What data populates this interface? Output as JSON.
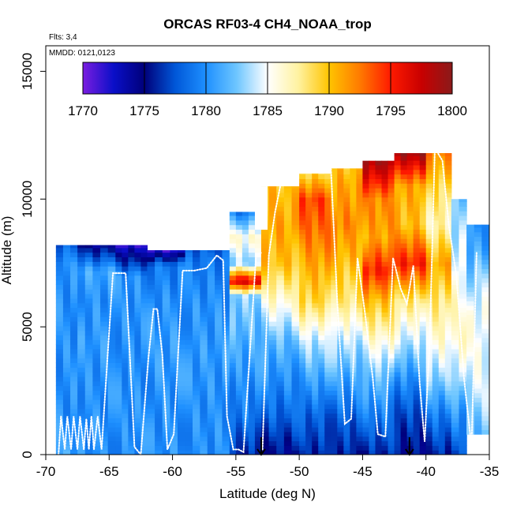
{
  "chart_data": {
    "type": "heatmap",
    "title": "ORCAS RF03-4 CH4_NOAA_trop",
    "flights_label": "Flts: 3,4",
    "mmdd_label": "MMDD: 0121,0123",
    "xlabel": "Latitude (deg N)",
    "ylabel": "Altitude (m)",
    "xlim": [
      -70,
      -35
    ],
    "ylim": [
      0,
      16000
    ],
    "x_ticks": [
      -70,
      -65,
      -60,
      -55,
      -50,
      -45,
      -40,
      -35
    ],
    "x_tick_labels": [
      "-70",
      "-65",
      "-60",
      "-55",
      "-50",
      "-45",
      "-40",
      "-35"
    ],
    "y_ticks": [
      0,
      5000,
      10000,
      15000
    ],
    "y_tick_labels": [
      "0",
      "5000",
      "10000",
      "15000"
    ],
    "colorbar": {
      "min": 1770,
      "max": 1800,
      "ticks": [
        1770,
        1775,
        1780,
        1785,
        1790,
        1795,
        1800
      ],
      "tick_labels": [
        "1770",
        "1775",
        "1780",
        "1785",
        "1790",
        "1795",
        "1800"
      ],
      "colors": [
        "#7a1de0",
        "#0a0fc8",
        "#00007a",
        "#0057d8",
        "#1e90ff",
        "#6ec6ff",
        "#ffffff",
        "#fff2a0",
        "#ffc400",
        "#ff7a00",
        "#ff1a00",
        "#c80000",
        "#8b1a1a"
      ]
    },
    "columns": [
      {
        "x0": -69.2,
        "x1": -67.5,
        "bottom": 0,
        "top": 8200,
        "profile": [
          [
            0,
            1781
          ],
          [
            1500,
            1780
          ],
          [
            3000,
            1780
          ],
          [
            4500,
            1780
          ],
          [
            6000,
            1780
          ],
          [
            7500,
            1780
          ],
          [
            8200,
            1778
          ]
        ]
      },
      {
        "x0": -67.5,
        "x1": -64.5,
        "bottom": 0,
        "top": 8200,
        "profile": [
          [
            0,
            1780
          ],
          [
            1500,
            1780
          ],
          [
            3000,
            1780
          ],
          [
            4500,
            1780.5
          ],
          [
            6000,
            1780
          ],
          [
            7200,
            1781
          ],
          [
            8200,
            1774.5
          ]
        ]
      },
      {
        "x0": -64.5,
        "x1": -62,
        "bottom": 0,
        "top": 8200,
        "profile": [
          [
            0,
            1780
          ],
          [
            2000,
            1780
          ],
          [
            4000,
            1780
          ],
          [
            5500,
            1780
          ],
          [
            7000,
            1780
          ],
          [
            8200,
            1772
          ]
        ]
      },
      {
        "x0": -62,
        "x1": -59,
        "bottom": 0,
        "top": 8000,
        "profile": [
          [
            0,
            1780
          ],
          [
            2000,
            1780
          ],
          [
            4000,
            1780.5
          ],
          [
            6000,
            1780
          ],
          [
            7400,
            1779
          ],
          [
            8000,
            1772
          ]
        ]
      },
      {
        "x0": -59,
        "x1": -55.5,
        "bottom": 0,
        "top": 8000,
        "profile": [
          [
            0,
            1780
          ],
          [
            2000,
            1780
          ],
          [
            4000,
            1780.5
          ],
          [
            6000,
            1780
          ],
          [
            7500,
            1779
          ],
          [
            8000,
            1778
          ]
        ]
      },
      {
        "x0": -55.5,
        "x1": -53,
        "bottom": 0,
        "top": 9500,
        "profile": [
          [
            0,
            1776
          ],
          [
            1500,
            1779
          ],
          [
            3000,
            1780
          ],
          [
            5000,
            1782
          ],
          [
            6200,
            1783
          ],
          [
            6800,
            1797
          ],
          [
            7500,
            1783
          ],
          [
            8500,
            1786
          ],
          [
            9500,
            1779
          ]
        ]
      },
      {
        "x0": -53,
        "x1": -50,
        "bottom": 0,
        "top": 10500,
        "profile": [
          [
            0,
            1775
          ],
          [
            1500,
            1778
          ],
          [
            3000,
            1780
          ],
          [
            4500,
            1782
          ],
          [
            6000,
            1786
          ],
          [
            7500,
            1790
          ],
          [
            9000,
            1791
          ],
          [
            10500,
            1790
          ]
        ]
      },
      {
        "x0": -50,
        "x1": -47.5,
        "bottom": 0,
        "top": 11000,
        "profile": [
          [
            0,
            1776
          ],
          [
            1500,
            1778
          ],
          [
            3000,
            1781
          ],
          [
            4500,
            1784
          ],
          [
            6000,
            1789
          ],
          [
            7500,
            1791
          ],
          [
            9000,
            1793
          ],
          [
            10000,
            1794
          ],
          [
            11000,
            1789
          ]
        ]
      },
      {
        "x0": -47.5,
        "x1": -45,
        "bottom": 0,
        "top": 11200,
        "profile": [
          [
            0,
            1776
          ],
          [
            1500,
            1778
          ],
          [
            3000,
            1781
          ],
          [
            4500,
            1784
          ],
          [
            6000,
            1788
          ],
          [
            7500,
            1790
          ],
          [
            9000,
            1792
          ],
          [
            10500,
            1791
          ],
          [
            11200,
            1790
          ]
        ]
      },
      {
        "x0": -45,
        "x1": -42.5,
        "bottom": 0,
        "top": 11500,
        "profile": [
          [
            0,
            1776
          ],
          [
            1500,
            1779
          ],
          [
            3000,
            1782
          ],
          [
            4500,
            1786
          ],
          [
            6000,
            1790
          ],
          [
            7200,
            1795
          ],
          [
            8500,
            1791
          ],
          [
            10000,
            1792
          ],
          [
            11500,
            1799
          ]
        ]
      },
      {
        "x0": -42.5,
        "x1": -40,
        "bottom": 0,
        "top": 11800,
        "profile": [
          [
            0,
            1775
          ],
          [
            1500,
            1777
          ],
          [
            3000,
            1780
          ],
          [
            4500,
            1784
          ],
          [
            6000,
            1788
          ],
          [
            7500,
            1795
          ],
          [
            9000,
            1790
          ],
          [
            10500,
            1791
          ],
          [
            11800,
            1799
          ]
        ]
      },
      {
        "x0": -40,
        "x1": -38,
        "bottom": 0,
        "top": 11800,
        "profile": [
          [
            0,
            1776
          ],
          [
            1500,
            1779
          ],
          [
            3000,
            1783
          ],
          [
            4500,
            1786
          ],
          [
            6000,
            1788
          ],
          [
            7500,
            1791
          ],
          [
            9000,
            1787
          ],
          [
            10500,
            1789
          ],
          [
            11800,
            1792
          ]
        ]
      },
      {
        "x0": -38,
        "x1": -36.8,
        "bottom": 0,
        "top": 10000,
        "profile": [
          [
            0,
            1777
          ],
          [
            1500,
            1780
          ],
          [
            3000,
            1784
          ],
          [
            4500,
            1786
          ],
          [
            6000,
            1786
          ],
          [
            7500,
            1785
          ],
          [
            9000,
            1783
          ],
          [
            10000,
            1782
          ]
        ]
      },
      {
        "x0": -36.8,
        "x1": -35,
        "bottom": 800,
        "top": 9000,
        "profile": [
          [
            800,
            1782
          ],
          [
            2500,
            1784
          ],
          [
            4000,
            1785
          ],
          [
            5500,
            1785
          ],
          [
            7000,
            1783
          ],
          [
            8000,
            1781
          ],
          [
            9000,
            1780
          ]
        ]
      }
    ],
    "flight_tracks": [
      {
        "name": "RF03",
        "lat": [
          -69.0,
          -68.8,
          -68.5,
          -68.3,
          -68.0,
          -67.8,
          -67.5,
          -67.3,
          -67.0,
          -66.8,
          -66.6,
          -66.4,
          -66.2,
          -65.9,
          -65.6,
          -64.7,
          -63.7,
          -63.0,
          -62.5,
          -61.9,
          -61.5,
          -61.2,
          -60.8,
          -60.4,
          -59.9,
          -59.2,
          -58.3,
          -57.3,
          -56.5,
          -56.0,
          -55.7,
          -55.2,
          -54.8,
          -54.4,
          -53.4,
          -53.0
        ],
        "alt": [
          0,
          1500,
          200,
          1500,
          200,
          1500,
          200,
          1500,
          200,
          1400,
          200,
          1500,
          200,
          1500,
          200,
          7100,
          7100,
          300,
          0,
          3800,
          5700,
          5700,
          3900,
          200,
          800,
          7200,
          7200,
          7300,
          7800,
          7600,
          1500,
          200,
          200,
          100,
          7800,
          7900
        ]
      },
      {
        "name": "RF04",
        "lat": [
          -52.9,
          -52.4,
          -51.9,
          -51.3,
          -50.5,
          -49.4,
          -48.5,
          -47.9,
          -47.5,
          -47.0,
          -46.4,
          -45.9,
          -45.4,
          -44.8,
          -44.2,
          -43.8,
          -43.2,
          -42.6,
          -42.0,
          -41.5,
          -41.0,
          -40.5,
          -40.1,
          -39.7,
          -39.3,
          -38.7,
          -38.2,
          -37.6,
          -37.0,
          -36.4,
          -36.0
        ],
        "alt": [
          200,
          7800,
          9500,
          11000,
          11200,
          11300,
          11400,
          11300,
          11200,
          6000,
          1200,
          1400,
          7700,
          5500,
          3000,
          800,
          700,
          7700,
          6500,
          5900,
          7400,
          2800,
          500,
          4500,
          12000,
          11500,
          9000,
          7000,
          3000,
          300,
          7900
        ]
      }
    ],
    "markers": [
      {
        "lat": -53,
        "alt": 0,
        "symbol": "down-arrow"
      },
      {
        "lat": -41.3,
        "alt": 0,
        "symbol": "down-arrow"
      }
    ],
    "blank_regions": [
      {
        "x0": -53.5,
        "x1": -52.5,
        "bottom": 8800,
        "top": 10500
      },
      {
        "x0": -54.2,
        "x1": -53.0,
        "bottom": 9600,
        "top": 11000
      }
    ]
  }
}
